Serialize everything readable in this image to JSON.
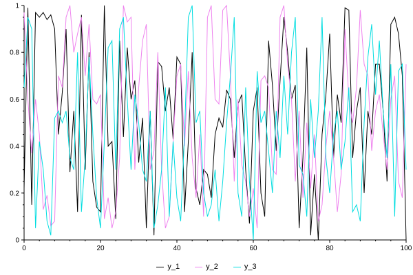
{
  "chart": {
    "background": "#ffffff",
    "axis_color": "#000000",
    "tick_label_color": "#000000"
  },
  "chart_data": {
    "type": "line",
    "title": "",
    "xlabel": "",
    "ylabel": "",
    "xlim": [
      0,
      100
    ],
    "ylim": [
      0,
      1
    ],
    "xticks": [
      "0",
      "20",
      "40",
      "60",
      "80",
      "100"
    ],
    "yticks": [
      "0",
      "0.2",
      "0.4",
      "0.6",
      "0.8",
      "1"
    ],
    "grid": false,
    "legend_position": "bottom-center",
    "x": [
      0,
      1,
      2,
      3,
      4,
      5,
      6,
      7,
      8,
      9,
      10,
      11,
      12,
      13,
      14,
      15,
      16,
      17,
      18,
      19,
      20,
      21,
      22,
      23,
      24,
      25,
      26,
      27,
      28,
      29,
      30,
      31,
      32,
      33,
      34,
      35,
      36,
      37,
      38,
      39,
      40,
      41,
      42,
      43,
      44,
      45,
      46,
      47,
      48,
      49,
      50,
      51,
      52,
      53,
      54,
      55,
      56,
      57,
      58,
      59,
      60,
      61,
      62,
      63,
      64,
      65,
      66,
      67,
      68,
      69,
      70,
      71,
      72,
      73,
      74,
      75,
      76,
      77,
      78,
      79,
      80,
      81,
      82,
      83,
      84,
      85,
      86,
      87,
      88,
      89,
      90,
      91,
      92,
      93,
      94,
      95,
      96,
      97,
      98,
      99,
      100
    ],
    "series": [
      {
        "name": "y_1",
        "color": "#000000",
        "values": [
          0.22,
          0.99,
          0.15,
          0.97,
          0.95,
          0.97,
          0.94,
          0.96,
          0.9,
          0.45,
          0.63,
          0.9,
          0.29,
          0.55,
          0.12,
          0.96,
          0.3,
          0.8,
          0.25,
          0.14,
          0.12,
          1.0,
          0.4,
          0.42,
          0.09,
          0.85,
          0.44,
          0.82,
          0.6,
          0.68,
          0.33,
          0.52,
          0.05,
          0.55,
          0.02,
          0.76,
          0.74,
          0.55,
          0.65,
          0.43,
          0.78,
          0.75,
          0.12,
          0.42,
          0.8,
          0.22,
          0.15,
          0.3,
          0.28,
          0.18,
          0.45,
          0.52,
          0.48,
          0.64,
          0.6,
          0.35,
          0.58,
          0.62,
          0.3,
          0.07,
          0.55,
          0.65,
          0.2,
          0.1,
          0.85,
          0.66,
          0.38,
          0.68,
          0.95,
          0.8,
          0.6,
          0.66,
          0.05,
          0.35,
          0.82,
          0.02,
          0.28,
          0.0,
          0.45,
          0.62,
          0.88,
          0.35,
          0.62,
          0.5,
          0.99,
          0.98,
          0.35,
          0.55,
          0.65,
          0.2,
          0.55,
          0.45,
          0.75,
          0.75,
          0.55,
          0.25,
          0.92,
          0.95,
          0.88,
          0.7,
          0.0
        ]
      },
      {
        "name": "y_2",
        "color": "#ee82ee",
        "values": [
          0.97,
          0.6,
          0.37,
          0.6,
          0.45,
          0.13,
          0.19,
          0.06,
          0.08,
          0.7,
          0.65,
          0.95,
          1.0,
          0.8,
          0.88,
          0.95,
          0.7,
          0.92,
          0.6,
          0.58,
          0.62,
          0.09,
          0.18,
          0.05,
          0.12,
          0.35,
          1.0,
          0.93,
          0.95,
          0.3,
          0.65,
          0.85,
          0.92,
          0.3,
          0.38,
          0.8,
          0.3,
          0.05,
          0.1,
          0.42,
          0.7,
          0.75,
          0.4,
          0.72,
          0.35,
          0.18,
          0.45,
          0.1,
          0.95,
          1.0,
          0.6,
          0.58,
          0.98,
          1.0,
          0.7,
          0.25,
          0.6,
          0.32,
          0.25,
          0.1,
          0.22,
          0.05,
          0.68,
          0.7,
          0.65,
          0.3,
          0.28,
          0.95,
          1.0,
          0.75,
          0.6,
          0.25,
          0.55,
          0.18,
          0.5,
          0.22,
          0.45,
          0.08,
          0.15,
          0.4,
          0.55,
          0.35,
          0.12,
          0.28,
          0.9,
          0.6,
          0.5,
          0.65,
          0.98,
          0.75,
          0.7,
          0.38,
          0.55,
          0.62,
          0.45,
          0.3,
          0.6,
          0.7,
          0.25,
          0.18,
          0.75
        ]
      },
      {
        "name": "y_3",
        "color": "#00dde0",
        "values": [
          0.65,
          0.95,
          0.9,
          0.05,
          0.42,
          0.3,
          0.08,
          0.02,
          0.52,
          0.55,
          0.5,
          0.55,
          0.35,
          0.3,
          0.8,
          0.12,
          0.35,
          0.78,
          0.45,
          0.18,
          0.05,
          0.42,
          0.82,
          0.85,
          0.3,
          0.9,
          0.95,
          0.6,
          0.3,
          0.62,
          0.5,
          0.3,
          0.25,
          0.55,
          0.05,
          0.15,
          0.3,
          0.65,
          0.1,
          0.42,
          0.18,
          0.08,
          0.45,
          0.95,
          1.0,
          0.5,
          0.55,
          0.2,
          0.1,
          0.15,
          0.3,
          0.08,
          0.25,
          0.5,
          0.7,
          0.95,
          0.2,
          0.1,
          0.65,
          0.25,
          0.0,
          0.72,
          0.5,
          0.55,
          0.38,
          0.2,
          0.55,
          0.35,
          0.7,
          0.45,
          0.8,
          0.95,
          0.32,
          0.28,
          0.1,
          0.6,
          0.35,
          0.55,
          0.95,
          0.35,
          0.2,
          0.45,
          0.55,
          0.3,
          0.42,
          0.65,
          0.12,
          0.15,
          0.08,
          0.5,
          0.78,
          0.92,
          0.62,
          0.85,
          0.55,
          0.35,
          0.75,
          0.1,
          0.72,
          0.75,
          0.3
        ]
      }
    ]
  }
}
